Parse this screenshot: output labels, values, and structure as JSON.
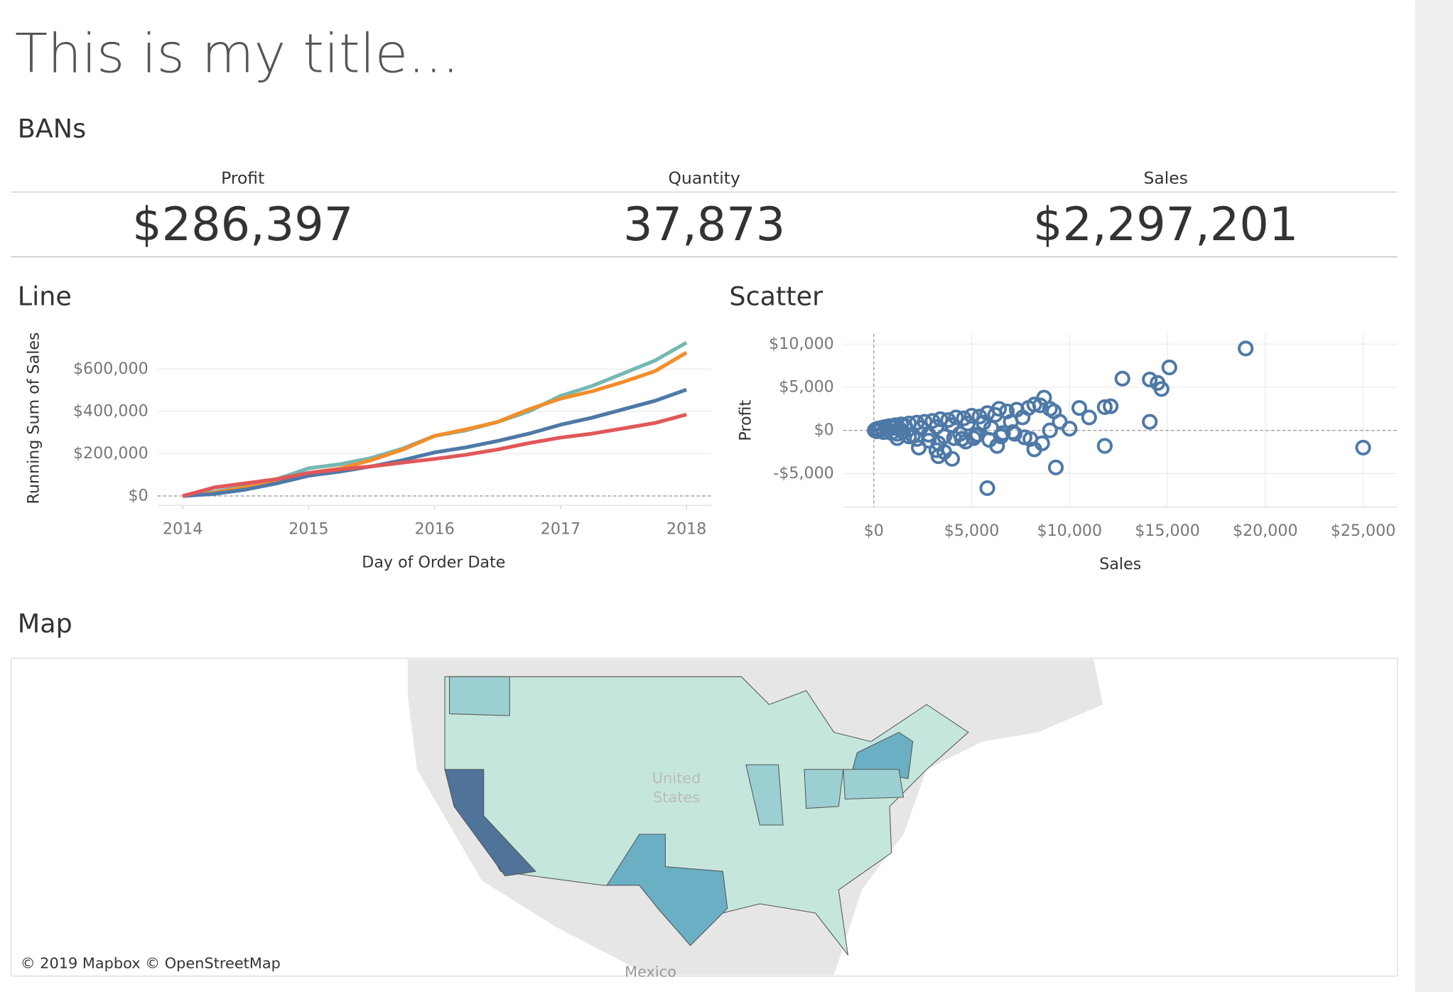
{
  "title": "This is my title...",
  "bans": {
    "heading": "BANs",
    "items": [
      {
        "label": "Profit",
        "value": "$286,397"
      },
      {
        "label": "Quantity",
        "value": "37,873"
      },
      {
        "label": "Sales",
        "value": "$2,297,201"
      }
    ]
  },
  "chart_data": [
    {
      "type": "line",
      "title": "Line",
      "x_label": "Day of Order Date",
      "y_label": "Running Sum of Sales",
      "x": [
        2014,
        2014.25,
        2014.5,
        2014.75,
        2015,
        2015.25,
        2015.5,
        2015.75,
        2016,
        2016.25,
        2016.5,
        2016.75,
        2017,
        2017.25,
        2017.5,
        2017.75,
        2018
      ],
      "series": [
        {
          "color": "#76b7b2",
          "values": [
            0,
            20000,
            45000,
            80000,
            131000,
            150000,
            180000,
            225000,
            284000,
            310000,
            350000,
            400000,
            473000,
            520000,
            580000,
            640000,
            725000
          ]
        },
        {
          "color": "#f28e2b",
          "values": [
            0,
            15000,
            40000,
            70000,
            109000,
            130000,
            170000,
            220000,
            284000,
            315000,
            350000,
            410000,
            460000,
            495000,
            540000,
            590000,
            678000
          ]
        },
        {
          "color": "#4e79a7",
          "values": [
            0,
            10000,
            30000,
            60000,
            96000,
            115000,
            140000,
            170000,
            206000,
            230000,
            260000,
            295000,
            337000,
            370000,
            410000,
            450000,
            503000
          ]
        },
        {
          "color": "#e15759",
          "values": [
            0,
            40000,
            60000,
            80000,
            109000,
            125000,
            140000,
            158000,
            175000,
            195000,
            220000,
            250000,
            276000,
            295000,
            320000,
            345000,
            385000
          ]
        }
      ],
      "xlim": [
        2013.8,
        2018.2
      ],
      "xticks": [
        2014,
        2015,
        2016,
        2017,
        2018
      ],
      "ylim": [
        -44000,
        780000
      ],
      "yticks": [
        {
          "value": 0,
          "label": "$0"
        },
        {
          "value": 200000,
          "label": "$200,000"
        },
        {
          "value": 400000,
          "label": "$400,000"
        },
        {
          "value": 600000,
          "label": "$600,000"
        }
      ],
      "grid": true
    },
    {
      "type": "scatter",
      "title": "Scatter",
      "x_label": "Sales",
      "y_label": "Profit",
      "color": "#4e79a7",
      "x": [
        50,
        100,
        150,
        200,
        300,
        400,
        500,
        600,
        700,
        800,
        900,
        1000,
        1100,
        1200,
        1300,
        1400,
        1500,
        1600,
        1800,
        2000,
        2200,
        2400,
        2600,
        2800,
        3000,
        3200,
        3400,
        3600,
        3800,
        4000,
        4200,
        4400,
        4600,
        4800,
        5000,
        5200,
        5400,
        5600,
        5800,
        6000,
        6200,
        6400,
        6600,
        6800,
        7000,
        7300,
        7600,
        7900,
        1200,
        1800,
        2300,
        2800,
        3300,
        3600,
        4100,
        4700,
        5300,
        5900,
        6500,
        7100,
        7700,
        2200,
        3200,
        3300,
        4000,
        4500,
        5100,
        6300,
        6500,
        7200,
        8000,
        8200,
        8600,
        9000,
        9300,
        9500,
        10000,
        10500,
        11000,
        11800,
        12100,
        12700,
        14100,
        14100,
        14500,
        14700,
        15100,
        19000,
        25000,
        5800,
        11800,
        8200,
        8700,
        9000,
        8500,
        9200
      ],
      "values": [
        0,
        100,
        -100,
        200,
        0,
        300,
        -200,
        400,
        100,
        500,
        -300,
        300,
        600,
        -400,
        200,
        700,
        -200,
        500,
        800,
        -600,
        900,
        300,
        1000,
        -500,
        1100,
        400,
        1300,
        -700,
        1200,
        600,
        1500,
        -400,
        1400,
        800,
        1700,
        -600,
        1600,
        900,
        2000,
        300,
        1800,
        2500,
        -300,
        2200,
        1000,
        2400,
        1500,
        2600,
        -900,
        -700,
        -2000,
        -1200,
        -3000,
        -2500,
        -900,
        -1300,
        -500,
        -1100,
        -600,
        -200,
        -800,
        -1000,
        -2300,
        -1500,
        -3300,
        -1000,
        -900,
        -1800,
        -700,
        -400,
        -1000,
        -2200,
        -1500,
        0,
        -4300,
        1000,
        200,
        2600,
        1500,
        2700,
        2800,
        6000,
        5900,
        1000,
        5500,
        4800,
        7300,
        9500,
        -2000,
        -6700,
        -1800,
        3000,
        3800,
        2500,
        2900,
        2200
      ],
      "xlim": [
        -1560,
        26750
      ],
      "xticks": [
        {
          "value": 0,
          "label": "$0"
        },
        {
          "value": 5000,
          "label": "$5,000"
        },
        {
          "value": 10000,
          "label": "$10,000"
        },
        {
          "value": 15000,
          "label": "$15,000"
        },
        {
          "value": 20000,
          "label": "$20,000"
        },
        {
          "value": 25000,
          "label": "$25,000"
        }
      ],
      "ylim": [
        -8900,
        11200
      ],
      "yticks": [
        {
          "value": -5000,
          "label": "-$5,000"
        },
        {
          "value": 0,
          "label": "$0"
        },
        {
          "value": 5000,
          "label": "$5,000"
        },
        {
          "value": 10000,
          "label": "$10,000"
        }
      ],
      "grid": true
    }
  ],
  "map": {
    "heading": "Map",
    "labels": [
      "United",
      "States",
      "Mexico"
    ],
    "attribution": "© 2019 Mapbox © OpenStreetMap"
  }
}
